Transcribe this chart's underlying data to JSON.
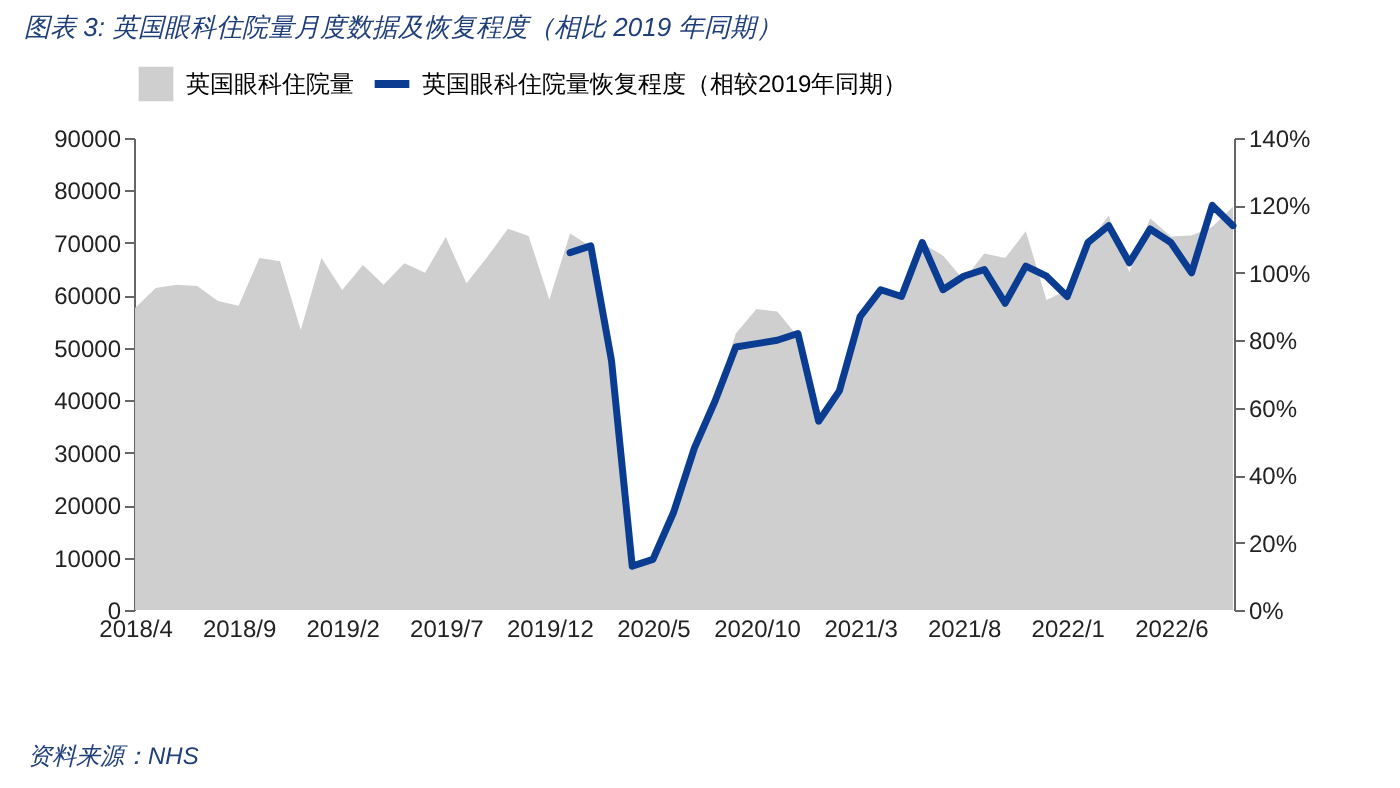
{
  "chart_data": {
    "type": "line",
    "title": "图表 3:  英国眼科住院量月度数据及恢复程度（相比 2019 年同期）",
    "categories": [
      "2018/4",
      null,
      null,
      null,
      null,
      "2018/9",
      null,
      null,
      null,
      null,
      "2019/2",
      null,
      null,
      null,
      null,
      "2019/7",
      null,
      null,
      null,
      null,
      "2019/12",
      null,
      null,
      null,
      null,
      "2020/5",
      null,
      null,
      null,
      null,
      "2020/10",
      null,
      null,
      null,
      null,
      "2021/3",
      null,
      null,
      null,
      null,
      "2021/8",
      null,
      null,
      null,
      null,
      "2022/1",
      null,
      null,
      null,
      null,
      "2022/6",
      null,
      null,
      null
    ],
    "series": [
      {
        "name": "英国眼科住院量",
        "type": "area",
        "color": "#d0cfd0",
        "values": [
          57600,
          61400,
          62000,
          61800,
          58900,
          58000,
          67100,
          66500,
          53400,
          67100,
          61000,
          65800,
          62000,
          66100,
          64300,
          71100,
          62300,
          67300,
          72700,
          71300,
          59200,
          71800,
          69300,
          47000,
          7900,
          9900,
          18400,
          30500,
          40000,
          52700,
          57400,
          56900,
          52100,
          36200,
          41700,
          55700,
          61000,
          59700,
          69900,
          67600,
          62900,
          68000,
          67100,
          72200,
          59100,
          61000,
          69900,
          75200,
          64400,
          74700,
          71200,
          71400,
          73100,
          76900
        ]
      },
      {
        "name": "英国眼科住院量恢复程度（相较2019年同期）",
        "axis": "y2",
        "color": "#0a3d91",
        "values": [
          null,
          null,
          null,
          null,
          null,
          null,
          null,
          null,
          null,
          null,
          null,
          null,
          null,
          null,
          null,
          null,
          null,
          null,
          null,
          null,
          null,
          106,
          108,
          74,
          13,
          15,
          29,
          48,
          62,
          78,
          79,
          80,
          82,
          56,
          65,
          87,
          95,
          93,
          109,
          95,
          99,
          101,
          91,
          102,
          99,
          93,
          109,
          114,
          103,
          113,
          109,
          100,
          120,
          114
        ]
      }
    ],
    "ylim": [
      0,
      90000
    ],
    "yticks": [
      0,
      10000,
      20000,
      30000,
      40000,
      50000,
      60000,
      70000,
      80000,
      90000
    ],
    "y2lim": [
      0,
      140
    ],
    "y2ticks": [
      {
        "value": 0,
        "label": "0%"
      },
      {
        "value": 20,
        "label": "20%"
      },
      {
        "value": 40,
        "label": "40%"
      },
      {
        "value": 60,
        "label": "60%"
      },
      {
        "value": 80,
        "label": "80%"
      },
      {
        "value": 100,
        "label": "100%"
      },
      {
        "value": 120,
        "label": "120%"
      },
      {
        "value": 140,
        "label": "140%"
      }
    ],
    "legend": "top",
    "annotations": [
      "资料来源：NHS"
    ]
  }
}
